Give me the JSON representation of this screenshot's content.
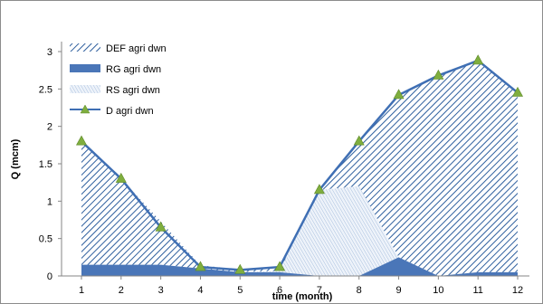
{
  "chart_data": {
    "type": "area",
    "xlabel": "time (month)",
    "ylabel": "Q (mcm)",
    "x": [
      1,
      2,
      3,
      4,
      5,
      6,
      7,
      8,
      9,
      10,
      11,
      12
    ],
    "xlim": [
      1,
      12
    ],
    "ylim": [
      0,
      3
    ],
    "yticks": [
      "0",
      "0.5",
      "1",
      "1.5",
      "2",
      "2.5",
      "3"
    ],
    "xticks": [
      "1",
      "2",
      "3",
      "4",
      "5",
      "6",
      "7",
      "8",
      "9",
      "10",
      "11",
      "12"
    ],
    "grid": false,
    "legend_position": "top-left",
    "series": [
      {
        "name": "DEF agri dwn",
        "kind": "hatched-area",
        "color": "#2e5f9e",
        "values": [
          1.65,
          1.15,
          0.58,
          0.04,
          0.04,
          0.05,
          0.0,
          0.6,
          2.17,
          2.68,
          2.83,
          2.4
        ]
      },
      {
        "name": "RG agri dwn",
        "kind": "solid-area",
        "color": "#4a76b8",
        "values": [
          0.15,
          0.15,
          0.15,
          0.1,
          0.05,
          0.05,
          0.0,
          0.0,
          0.25,
          0.0,
          0.05,
          0.05
        ]
      },
      {
        "name": "RS agri dwn",
        "kind": "dotted-area",
        "color": "#b8cce4",
        "values": [
          0.0,
          0.0,
          0.0,
          0.0,
          0.0,
          0.02,
          1.15,
          1.2,
          0.0,
          0.0,
          0.0,
          0.0
        ]
      },
      {
        "name": "D agri dwn",
        "kind": "line-markers",
        "color": "#3f6fb4",
        "marker_color": "#7fae3e",
        "values": [
          1.8,
          1.3,
          0.65,
          0.12,
          0.08,
          0.12,
          1.15,
          1.8,
          2.42,
          2.68,
          2.88,
          2.45
        ]
      }
    ]
  }
}
